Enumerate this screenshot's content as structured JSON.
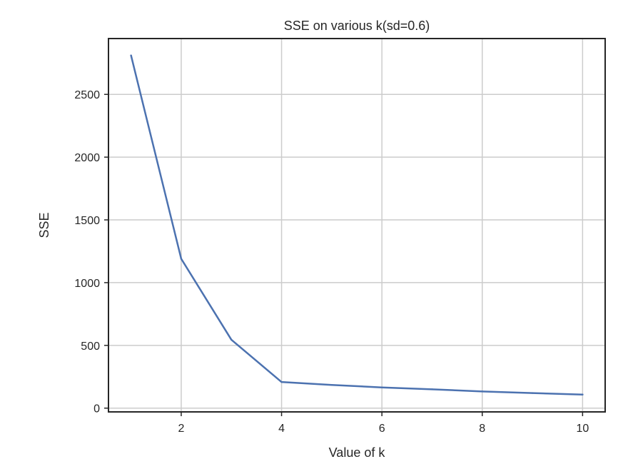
{
  "chart_data": {
    "type": "line",
    "title": "SSE on various k(sd=0.6)",
    "xlabel": "Value of k",
    "ylabel": "SSE",
    "x": [
      1,
      2,
      3,
      4,
      5,
      6,
      7,
      8,
      9,
      10
    ],
    "series": [
      {
        "values": [
          2810,
          1190,
          545,
          208,
          185,
          165,
          150,
          133,
          120,
          108
        ],
        "color": "#4c72b0"
      }
    ],
    "xlim": [
      0.55,
      10.45
    ],
    "ylim": [
      -30,
      2945
    ],
    "xticks": [
      2,
      4,
      6,
      8,
      10
    ],
    "yticks": [
      0,
      500,
      1000,
      1500,
      2000,
      2500
    ],
    "grid": true,
    "grid_color": "#cccccc",
    "axes_color": "#262626",
    "text_color": "#262626"
  }
}
